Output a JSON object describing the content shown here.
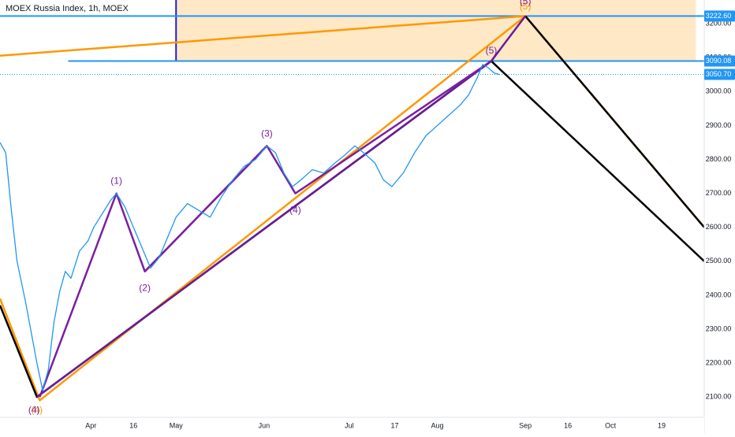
{
  "header": {
    "title": "MOEX Russia Index, 1h, MOEX"
  },
  "chart_data": {
    "type": "line",
    "title": "MOEX Russia Index, 1h, MOEX",
    "ylim": [
      2040,
      3270
    ],
    "grid": false,
    "y_ticks": [
      2100,
      2200,
      2300,
      2400,
      2500,
      2600,
      2700,
      2800,
      2900,
      3000,
      3100,
      3200
    ],
    "y_tick_labels": [
      "2100.00",
      "2200.00",
      "2300.00",
      "2400.00",
      "2500.00",
      "2600.00",
      "2700.00",
      "2800.00",
      "2900.00",
      "3000.00",
      "3100.00",
      "3200.00"
    ],
    "x_labels": [
      {
        "label": "Apr",
        "date": "2021-04-01"
      },
      {
        "label": "16",
        "date": "2021-04-16"
      },
      {
        "label": "May",
        "date": "2021-05-01"
      },
      {
        "label": "Jun",
        "date": "2021-06-01"
      },
      {
        "label": "Jul",
        "date": "2021-07-01"
      },
      {
        "label": "17",
        "date": "2021-07-17"
      },
      {
        "label": "Aug",
        "date": "2021-08-01"
      },
      {
        "label": "Sep",
        "date": "2021-09-01"
      },
      {
        "label": "16",
        "date": "2021-09-16"
      },
      {
        "label": "Oct",
        "date": "2021-10-01"
      },
      {
        "label": "19",
        "date": "2021-10-19"
      }
    ],
    "price_labels": [
      {
        "value": 3222.6,
        "text": "3222.60",
        "color": "#2196f3"
      },
      {
        "value": 3090.08,
        "text": "3090.08",
        "color": "#2196f3"
      },
      {
        "value": 3050.7,
        "text": "3050.70",
        "color": "#2196f3"
      }
    ],
    "series": [
      {
        "color": "#2196f3",
        "points": [
          [
            "2021-02-28",
            2850
          ],
          [
            "2021-03-02",
            2820
          ],
          [
            "2021-03-04",
            2650
          ],
          [
            "2021-03-06",
            2500
          ],
          [
            "2021-03-09",
            2380
          ],
          [
            "2021-03-11",
            2290
          ],
          [
            "2021-03-13",
            2200
          ],
          [
            "2021-03-15",
            2120
          ],
          [
            "2021-03-17",
            2180
          ],
          [
            "2021-03-19",
            2320
          ],
          [
            "2021-03-21",
            2410
          ],
          [
            "2021-03-23",
            2470
          ],
          [
            "2021-03-25",
            2450
          ],
          [
            "2021-03-28",
            2530
          ],
          [
            "2021-03-31",
            2560
          ],
          [
            "2021-04-02",
            2600
          ],
          [
            "2021-04-05",
            2640
          ],
          [
            "2021-04-08",
            2680
          ],
          [
            "2021-04-10",
            2700
          ],
          [
            "2021-04-13",
            2660
          ],
          [
            "2021-04-16",
            2600
          ],
          [
            "2021-04-19",
            2540
          ],
          [
            "2021-04-22",
            2480
          ],
          [
            "2021-04-25",
            2510
          ],
          [
            "2021-04-28",
            2570
          ],
          [
            "2021-05-01",
            2630
          ],
          [
            "2021-05-05",
            2670
          ],
          [
            "2021-05-09",
            2650
          ],
          [
            "2021-05-13",
            2630
          ],
          [
            "2021-05-17",
            2690
          ],
          [
            "2021-05-21",
            2740
          ],
          [
            "2021-05-25",
            2780
          ],
          [
            "2021-05-29",
            2800
          ],
          [
            "2021-06-02",
            2840
          ],
          [
            "2021-06-05",
            2820
          ],
          [
            "2021-06-08",
            2760
          ],
          [
            "2021-06-11",
            2720
          ],
          [
            "2021-06-14",
            2740
          ],
          [
            "2021-06-18",
            2770
          ],
          [
            "2021-06-22",
            2760
          ],
          [
            "2021-06-26",
            2790
          ],
          [
            "2021-06-29",
            2810
          ],
          [
            "2021-07-03",
            2840
          ],
          [
            "2021-07-06",
            2820
          ],
          [
            "2021-07-10",
            2790
          ],
          [
            "2021-07-13",
            2740
          ],
          [
            "2021-07-16",
            2720
          ],
          [
            "2021-07-20",
            2760
          ],
          [
            "2021-07-24",
            2820
          ],
          [
            "2021-07-28",
            2870
          ],
          [
            "2021-08-01",
            2900
          ],
          [
            "2021-08-05",
            2930
          ],
          [
            "2021-08-09",
            2960
          ],
          [
            "2021-08-12",
            2990
          ],
          [
            "2021-08-15",
            3040
          ],
          [
            "2021-08-17",
            3080
          ],
          [
            "2021-08-19",
            3070
          ],
          [
            "2021-08-21",
            3055
          ],
          [
            "2021-08-23",
            3050
          ]
        ]
      }
    ],
    "drawings": [
      {
        "kind": "box",
        "from": [
          "2021-05-01",
          3090.08
        ],
        "to": [
          "2021-10-31",
          3270
        ],
        "fill": "#ffe0b2",
        "border": "#1e1ec8"
      },
      {
        "kind": "hline",
        "y": 3222.6,
        "from": "2021-02-20",
        "color": "#2196f3"
      },
      {
        "kind": "hline",
        "y": 3090.08,
        "from": "2021-03-24",
        "color": "#2196f3"
      },
      {
        "kind": "hline",
        "y": 3050.7,
        "from": "2021-02-20",
        "color": "#2196f3",
        "dashed": true
      },
      {
        "kind": "segment",
        "points": [
          [
            "2021-02-20",
            3105
          ],
          [
            "2021-09-01",
            3222.6
          ]
        ],
        "color": "#ff9800"
      },
      {
        "kind": "segment",
        "points": [
          [
            "2021-02-28",
            2390
          ],
          [
            "2021-03-14",
            2090
          ],
          [
            "2021-09-01",
            3222.6
          ],
          [
            "2021-11-03",
            2600
          ]
        ],
        "color": "#ff9800"
      },
      {
        "kind": "segment",
        "points": [
          [
            "2021-02-28",
            2370
          ],
          [
            "2021-03-13",
            2100
          ],
          [
            "2021-08-20",
            3090
          ],
          [
            "2021-11-03",
            2500
          ]
        ],
        "color": "#000000"
      },
      {
        "kind": "segment",
        "points": [
          [
            "2021-09-01",
            3222.6
          ],
          [
            "2021-11-03",
            2600
          ]
        ],
        "color": "#000000"
      },
      {
        "kind": "segment",
        "points": [
          [
            "2021-03-13",
            2100
          ],
          [
            "2021-08-20",
            3090
          ],
          [
            "2021-09-01",
            3222.6
          ]
        ],
        "color": "#6a1b9a"
      },
      {
        "kind": "segment",
        "points": [
          [
            "2021-03-14",
            2100
          ],
          [
            "2021-04-10",
            2700
          ],
          [
            "2021-04-20",
            2470
          ],
          [
            "2021-06-02",
            2840
          ],
          [
            "2021-06-12",
            2700
          ],
          [
            "2021-08-20",
            3090
          ]
        ],
        "color": "#7b1fa2"
      },
      {
        "kind": "segment",
        "points": [
          [
            "2021-04-20",
            2470
          ],
          [
            "2021-06-02",
            2840
          ]
        ],
        "color": "#7b1fa2"
      }
    ],
    "annotations": [
      {
        "text": "(1)",
        "x": "2021-04-10",
        "y": 2735,
        "color": "#7b1fa2"
      },
      {
        "text": "(2)",
        "x": "2021-04-20",
        "y": 2420,
        "color": "#7b1fa2"
      },
      {
        "text": "(3)",
        "x": "2021-06-02",
        "y": 2875,
        "color": "#7b1fa2"
      },
      {
        "text": "(4)",
        "x": "2021-06-12",
        "y": 2650,
        "color": "#7b1fa2"
      },
      {
        "text": "(5)",
        "x": "2021-08-20",
        "y": 3120,
        "color": "#7b1fa2"
      },
      {
        "text": "(5)",
        "x": "2021-09-01",
        "y": 3250,
        "color": "#ff9800"
      },
      {
        "text": "(5)",
        "x": "2021-09-01",
        "y": 3265,
        "color": "#7b1fa2"
      },
      {
        "text": "(4)",
        "x": "2021-03-13",
        "y": 2060,
        "color": "#ff9800"
      },
      {
        "text": "(4)",
        "x": "2021-03-12",
        "y": 2060,
        "color": "#7b1fa2"
      }
    ]
  }
}
